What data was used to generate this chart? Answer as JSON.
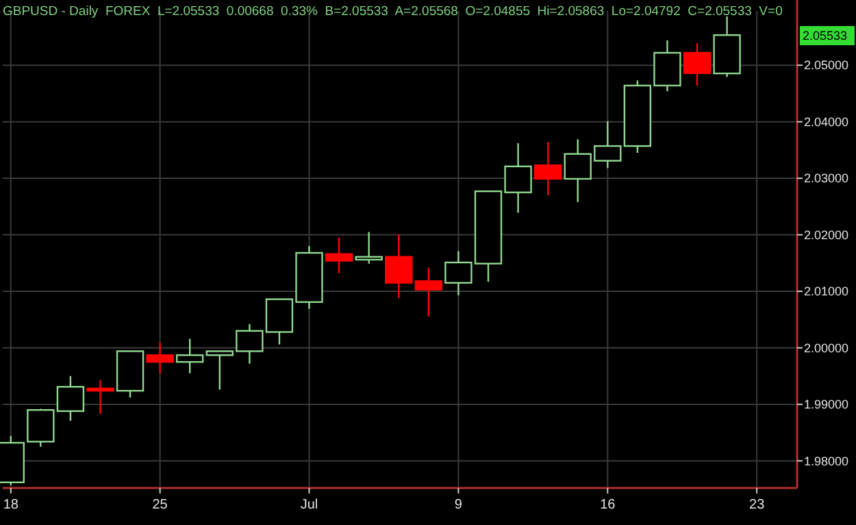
{
  "chart_data": {
    "type": "candlestick",
    "title": "GBPUSD - Daily  FOREX  L=2.05533  0.00668  0.33%  B=2.05533  A=2.05568  O=2.04855  Hi=2.05863  Lo=2.04792  C=2.05533  V=0",
    "categories": [
      "18",
      null,
      null,
      null,
      null,
      "25",
      null,
      null,
      null,
      null,
      "Jul",
      null,
      null,
      null,
      null,
      "9",
      null,
      null,
      null,
      null,
      "16",
      null,
      null,
      null,
      null,
      "23",
      null
    ],
    "ohlc": [
      [
        1.9762,
        1.9844,
        1.9757,
        1.9832
      ],
      [
        1.9834,
        1.9892,
        1.9825,
        1.989
      ],
      [
        1.9888,
        1.995,
        1.9871,
        1.9931
      ],
      [
        1.9928,
        1.9943,
        1.9883,
        1.9924
      ],
      [
        1.9924,
        1.9995,
        1.9912,
        1.9994
      ],
      [
        1.9987,
        2.0009,
        1.9955,
        1.9975
      ],
      [
        1.9975,
        2.0016,
        1.9955,
        1.9987
      ],
      [
        1.9987,
        1.9995,
        1.9926,
        1.9994
      ],
      [
        1.9994,
        2.0042,
        1.9972,
        2.003
      ],
      [
        2.0028,
        2.0087,
        2.0006,
        2.0086
      ],
      [
        2.0081,
        2.018,
        2.0069,
        2.0168
      ],
      [
        2.0166,
        2.0195,
        2.0132,
        2.0154
      ],
      [
        2.0156,
        2.0205,
        2.0149,
        2.0161
      ],
      [
        2.0161,
        2.02,
        2.0088,
        2.0115
      ],
      [
        2.0118,
        2.0142,
        2.0055,
        2.0103
      ],
      [
        2.0115,
        2.0171,
        2.0093,
        2.0151
      ],
      [
        2.0149,
        2.0278,
        2.0117,
        2.0277
      ],
      [
        2.0275,
        2.0362,
        2.0239,
        2.0321
      ],
      [
        2.0323,
        2.0364,
        2.027,
        2.0299
      ],
      [
        2.0299,
        2.0369,
        2.0258,
        2.0343
      ],
      [
        2.0331,
        2.0401,
        2.0318,
        2.0357
      ],
      [
        2.0357,
        2.0473,
        2.0345,
        2.0464
      ],
      [
        2.0464,
        2.0544,
        2.0454,
        2.0522
      ],
      [
        2.0522,
        2.0539,
        2.0464,
        2.0486
      ],
      [
        2.04855,
        2.05863,
        2.04792,
        2.05533
      ],
      null,
      null
    ],
    "ylim": [
      1.9752,
      2.0596
    ],
    "yticks": [
      {
        "value": 1.98,
        "label": "1.98000"
      },
      {
        "value": 1.99,
        "label": "1.99000"
      },
      {
        "value": 2.0,
        "label": "2.00000"
      },
      {
        "value": 2.01,
        "label": "2.01000"
      },
      {
        "value": 2.02,
        "label": "2.02000"
      },
      {
        "value": 2.03,
        "label": "2.03000"
      },
      {
        "value": 2.04,
        "label": "2.04000"
      },
      {
        "value": 2.05,
        "label": "2.05000"
      }
    ],
    "grid": true,
    "annotations": [
      "2.05533"
    ]
  }
}
